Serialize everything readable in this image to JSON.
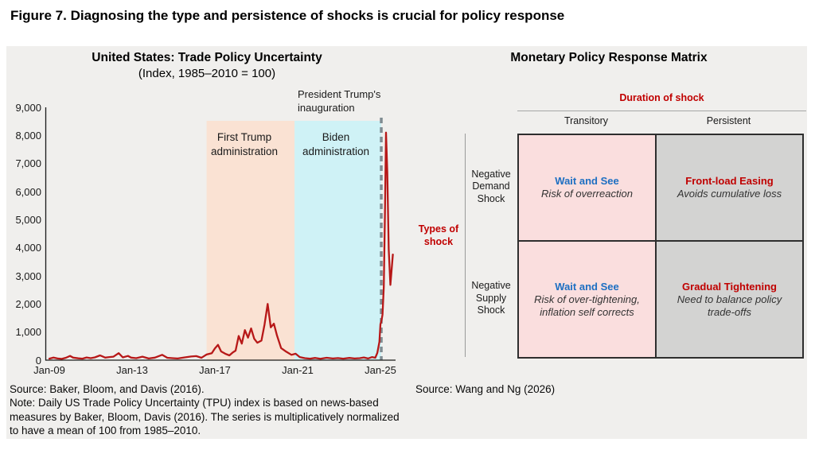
{
  "figure_title": "Figure 7. Diagnosing the type and persistence of shocks is crucial for policy response",
  "left_chart": {
    "title": "United States: Trade Policy Uncertainty",
    "subtitle": "(Index, 1985–2010 = 100)",
    "annotation": "President Trump's inauguration",
    "source": "Source: Baker, Bloom, and Davis (2016).",
    "note": "Note: Daily US Trade Policy Uncertainty (TPU) index is based on news-based measures by Baker, Bloom, Davis (2016). The series is multiplicatively normalized to have a mean of 100 from 1985–2010."
  },
  "chart_data": {
    "type": "line",
    "title": "United States: Trade Policy Uncertainty",
    "subtitle": "(Index, 1985–2010 = 100)",
    "xlabel": "",
    "ylabel": "",
    "xlim": [
      2009.0,
      2025.85
    ],
    "ylim": [
      0,
      9000
    ],
    "grid": false,
    "y_ticks": [
      {
        "value": 0,
        "label": "0"
      },
      {
        "value": 1000,
        "label": "1,000"
      },
      {
        "value": 2000,
        "label": "2,000"
      },
      {
        "value": 3000,
        "label": "3,000"
      },
      {
        "value": 4000,
        "label": "4,000"
      },
      {
        "value": 5000,
        "label": "5,000"
      },
      {
        "value": 6000,
        "label": "6,000"
      },
      {
        "value": 7000,
        "label": "7,000"
      },
      {
        "value": 8000,
        "label": "8,000"
      },
      {
        "value": 9000,
        "label": "9,000"
      }
    ],
    "x_ticks": [
      {
        "value": 2009.0,
        "label": "Jan-09"
      },
      {
        "value": 2013.0,
        "label": "Jan-13"
      },
      {
        "value": 2017.0,
        "label": "Jan-17"
      },
      {
        "value": 2021.0,
        "label": "Jan-21"
      },
      {
        "value": 2025.0,
        "label": "Jan-25"
      }
    ],
    "regions": [
      {
        "name": "first-trump-administration",
        "label": "First Trump administration",
        "start": 2016.6,
        "end": 2020.85,
        "color": "#fae2d3"
      },
      {
        "name": "biden-administration",
        "label": "Biden administration",
        "start": 2020.85,
        "end": 2025.04,
        "color": "#cff2f6"
      }
    ],
    "vline": {
      "x": 2025.04,
      "label": "President Trump's inauguration",
      "color": "#7f8c92",
      "style": "dashed"
    },
    "series": [
      {
        "name": "US Trade Policy Uncertainty index",
        "color": "#b71818",
        "points": [
          [
            2009.0,
            55
          ],
          [
            2009.2,
            90
          ],
          [
            2009.4,
            60
          ],
          [
            2009.6,
            45
          ],
          [
            2009.8,
            85
          ],
          [
            2010.0,
            150
          ],
          [
            2010.15,
            90
          ],
          [
            2010.4,
            65
          ],
          [
            2010.6,
            55
          ],
          [
            2010.8,
            95
          ],
          [
            2011.0,
            70
          ],
          [
            2011.2,
            100
          ],
          [
            2011.45,
            170
          ],
          [
            2011.7,
            90
          ],
          [
            2011.9,
            110
          ],
          [
            2012.1,
            125
          ],
          [
            2012.35,
            250
          ],
          [
            2012.55,
            100
          ],
          [
            2012.8,
            150
          ],
          [
            2012.95,
            90
          ],
          [
            2013.2,
            70
          ],
          [
            2013.5,
            125
          ],
          [
            2013.8,
            60
          ],
          [
            2014.1,
            90
          ],
          [
            2014.45,
            190
          ],
          [
            2014.7,
            85
          ],
          [
            2014.95,
            70
          ],
          [
            2015.2,
            60
          ],
          [
            2015.55,
            100
          ],
          [
            2015.85,
            130
          ],
          [
            2016.1,
            145
          ],
          [
            2016.35,
            85
          ],
          [
            2016.6,
            200
          ],
          [
            2016.85,
            250
          ],
          [
            2017.0,
            420
          ],
          [
            2017.15,
            545
          ],
          [
            2017.3,
            310
          ],
          [
            2017.5,
            230
          ],
          [
            2017.7,
            170
          ],
          [
            2017.85,
            265
          ],
          [
            2018.0,
            340
          ],
          [
            2018.15,
            860
          ],
          [
            2018.3,
            590
          ],
          [
            2018.45,
            1070
          ],
          [
            2018.6,
            800
          ],
          [
            2018.75,
            1130
          ],
          [
            2018.9,
            760
          ],
          [
            2019.05,
            620
          ],
          [
            2019.25,
            700
          ],
          [
            2019.4,
            1270
          ],
          [
            2019.55,
            2000
          ],
          [
            2019.7,
            1170
          ],
          [
            2019.85,
            1300
          ],
          [
            2020.0,
            880
          ],
          [
            2020.2,
            430
          ],
          [
            2020.45,
            300
          ],
          [
            2020.7,
            190
          ],
          [
            2020.9,
            230
          ],
          [
            2021.1,
            110
          ],
          [
            2021.35,
            70
          ],
          [
            2021.6,
            55
          ],
          [
            2021.85,
            80
          ],
          [
            2022.1,
            50
          ],
          [
            2022.4,
            85
          ],
          [
            2022.7,
            60
          ],
          [
            2022.95,
            75
          ],
          [
            2023.2,
            55
          ],
          [
            2023.5,
            80
          ],
          [
            2023.75,
            60
          ],
          [
            2024.0,
            70
          ],
          [
            2024.2,
            95
          ],
          [
            2024.4,
            60
          ],
          [
            2024.6,
            110
          ],
          [
            2024.75,
            85
          ],
          [
            2024.85,
            260
          ],
          [
            2024.95,
            650
          ],
          [
            2025.0,
            1280
          ],
          [
            2025.04,
            1360
          ],
          [
            2025.1,
            1620
          ],
          [
            2025.16,
            2600
          ],
          [
            2025.22,
            5300
          ],
          [
            2025.27,
            8100
          ],
          [
            2025.33,
            6700
          ],
          [
            2025.4,
            3950
          ],
          [
            2025.48,
            2680
          ],
          [
            2025.54,
            3200
          ],
          [
            2025.6,
            3760
          ]
        ]
      }
    ]
  },
  "matrix": {
    "title": "Monetary Policy Response Matrix",
    "col_axis_label": "Duration of shock",
    "row_axis_label": "Types of shock",
    "col_headers": {
      "0": "Transitory",
      "1": "Persistent"
    },
    "row_headers": {
      "0": "Negative Demand Shock",
      "1": "Negative Supply Shock"
    },
    "cells": {
      "0": {
        "headline": "Wait and See",
        "headline_color": "#1d6fc2",
        "sub": "Risk of overreaction",
        "bg": "#fadede"
      },
      "1": {
        "headline": "Front-load Easing",
        "headline_color": "#c00000",
        "sub": "Avoids cumulative loss",
        "bg": "#d3d3d2"
      },
      "2": {
        "headline": "Wait and See",
        "headline_color": "#1d6fc2",
        "sub": "Risk of over-tightening, inflation self corrects",
        "bg": "#fadede"
      },
      "3": {
        "headline": "Gradual Tightening",
        "headline_color": "#c00000",
        "sub": "Need to balance policy trade-offs",
        "bg": "#d3d3d2"
      }
    },
    "source": "Source: Wang and Ng (2026)"
  },
  "colors": {
    "panel_background": "#f0efed",
    "line": "#b71818",
    "region_trump1": "#fae2d3",
    "region_biden": "#cff2f6",
    "dashed_vline": "#7f8c92",
    "matrix_pink": "#fadede",
    "matrix_gray": "#d3d3d2",
    "accent_red": "#c00000",
    "accent_blue": "#1d6fc2",
    "axis": "#1a1a1a"
  }
}
